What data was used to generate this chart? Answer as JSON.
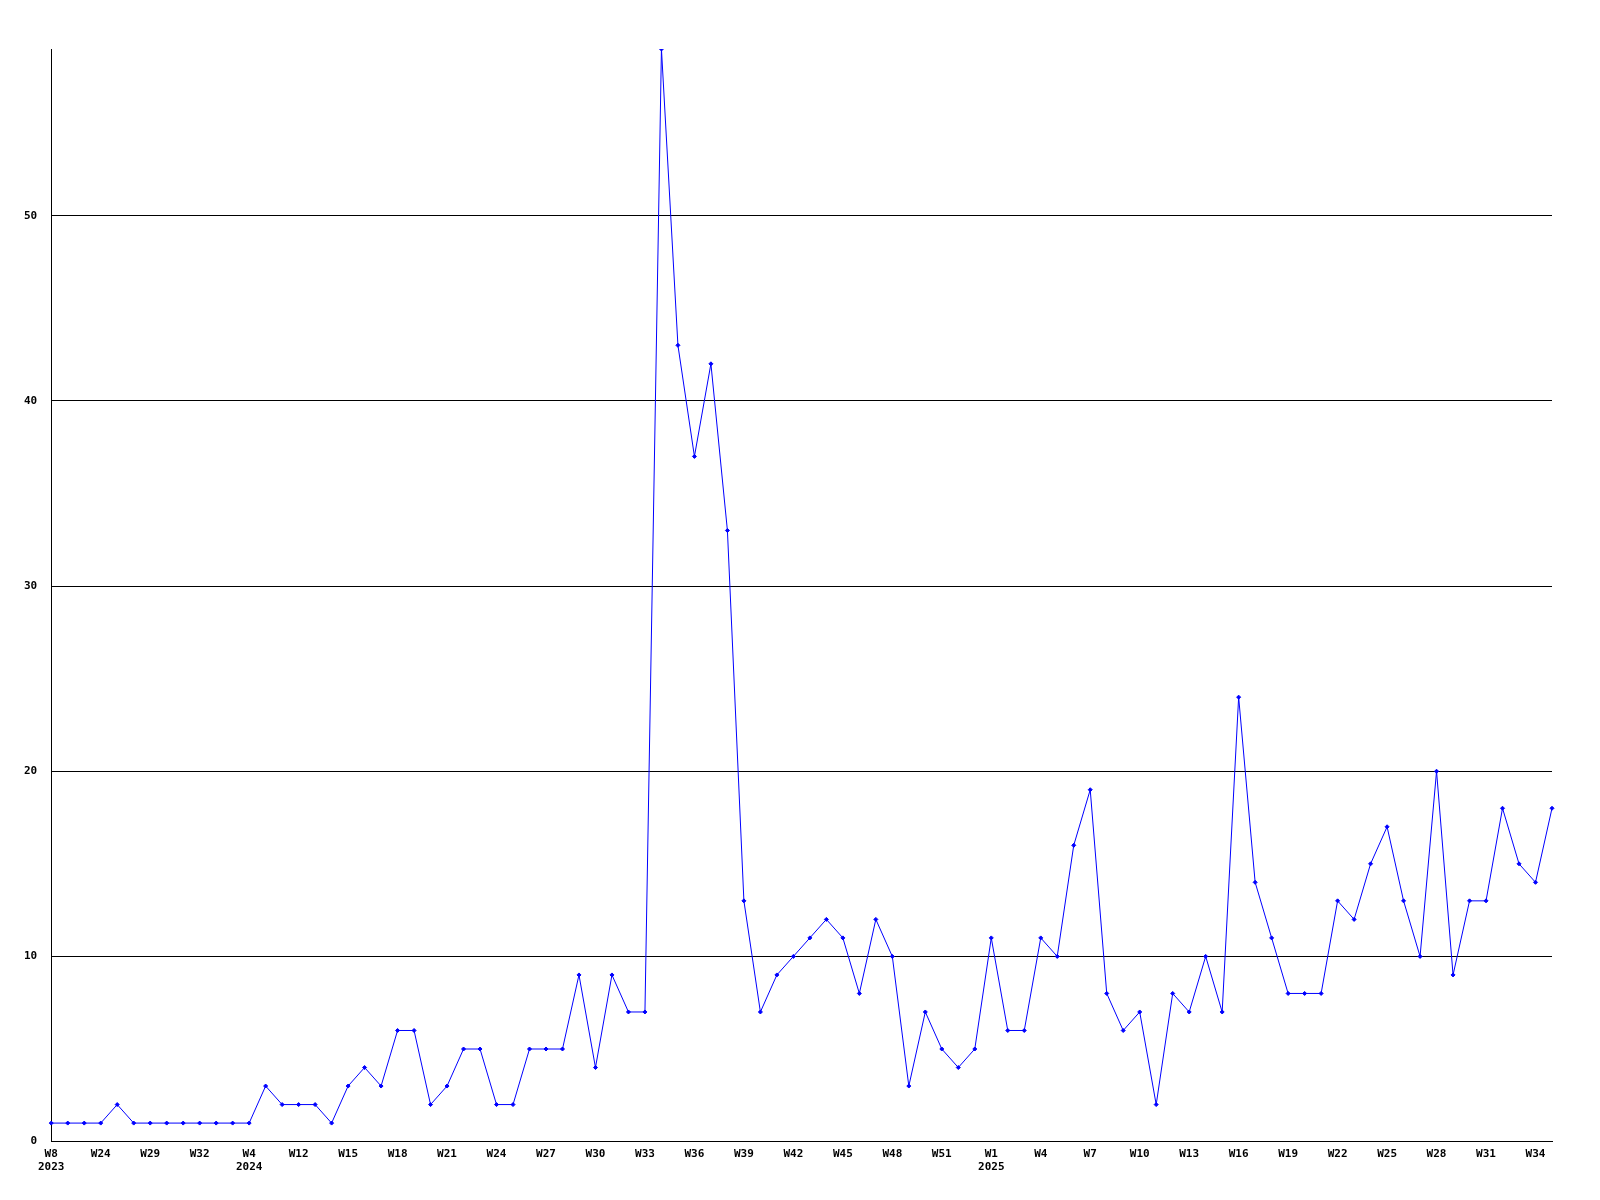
{
  "chart_data": {
    "type": "line",
    "categories": [
      "W8\n2023",
      null,
      null,
      "W24",
      null,
      null,
      "W29",
      null,
      null,
      "W32",
      null,
      null,
      "W4\n2024",
      null,
      null,
      "W12",
      null,
      null,
      "W15",
      null,
      null,
      "W18",
      null,
      null,
      "W21",
      null,
      null,
      "W24",
      null,
      null,
      "W27",
      null,
      null,
      "W30",
      null,
      null,
      "W33",
      null,
      null,
      "W36",
      null,
      null,
      "W39",
      null,
      null,
      "W42",
      null,
      null,
      "W45",
      null,
      null,
      "W48",
      null,
      null,
      "W51",
      null,
      null,
      "W1\n2025",
      null,
      null,
      "W4",
      null,
      null,
      "W7",
      null,
      null,
      "W10",
      null,
      null,
      "W13",
      null,
      null,
      "W16",
      null,
      null,
      "W19",
      null,
      null,
      "W22",
      null,
      null,
      "W25",
      null,
      null,
      "W28",
      null,
      null,
      "W31",
      null,
      null,
      "W34",
      null
    ],
    "series": [
      {
        "color": "#0000ff",
        "values": [
          1,
          1,
          1,
          1,
          2,
          1,
          1,
          1,
          1,
          1,
          1,
          1,
          1,
          3,
          2,
          2,
          2,
          1,
          3,
          4,
          3,
          6,
          6,
          2,
          3,
          5,
          5,
          2,
          2,
          5,
          5,
          5,
          9,
          4,
          9,
          7,
          7,
          59,
          43,
          37,
          42,
          33,
          13,
          7,
          9,
          10,
          11,
          12,
          11,
          8,
          12,
          10,
          3,
          7,
          5,
          4,
          5,
          11,
          6,
          6,
          11,
          10,
          16,
          19,
          8,
          6,
          7,
          2,
          8,
          7,
          10,
          7,
          24,
          14,
          11,
          8,
          8,
          8,
          13,
          12,
          15,
          17,
          13,
          10,
          20,
          9,
          13,
          13,
          18,
          15,
          14,
          18
        ]
      }
    ],
    "ylim": [
      0,
      59
    ],
    "yticks": [
      0,
      10,
      20,
      30,
      40,
      50
    ],
    "grid": "y",
    "legend": false,
    "marker": "diamond",
    "line_style": "solid"
  }
}
